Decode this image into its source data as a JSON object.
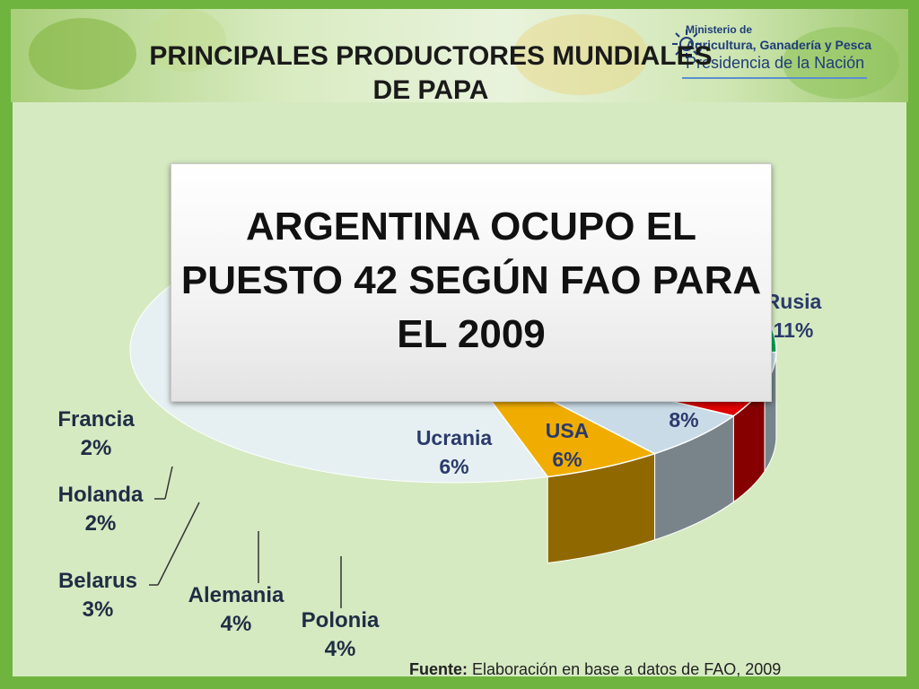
{
  "title": "PRINCIPALES PRODUCTORES MUNDIALES DE PAPA",
  "logo": {
    "line1": "Ministerio de",
    "line2": "Agricultura, Ganadería y Pesca",
    "line3": "Presidencia de la Nación"
  },
  "callout": "ARGENTINA OCUPO EL PUESTO  42  SEGÚN FAO PARA  EL 2009",
  "source": {
    "label": "Fuente:",
    "text": "Elaboración en base a datos de FAO, 2009"
  },
  "colors": {
    "background_green": "#6fb43f",
    "panel": "#d6eac2",
    "usa": "#f0ad00",
    "polonia": "#e00000",
    "alemania": "#c5dde8",
    "belarus": "#00a651",
    "rusia": "#1f1f8c"
  },
  "chart_data": {
    "type": "pie",
    "title": "PRINCIPALES PRODUCTORES MUNDIALES DE PAPA",
    "three_d": true,
    "unit": "%",
    "slices": [
      {
        "name": "USA",
        "value": 6,
        "label": "6%",
        "color": "#f0ad00"
      },
      {
        "name": "Ucrania",
        "value": 6,
        "label": "6%",
        "color": "#c9dbe6"
      },
      {
        "name": "Polonia",
        "value": 4,
        "label": "4%",
        "color": "#e00000"
      },
      {
        "name": "Alemania",
        "value": 4,
        "label": "4%",
        "color": "#c5dde8"
      },
      {
        "name": "Belarus",
        "value": 3,
        "label": "3%",
        "color": "#00a651"
      },
      {
        "name": "Holanda",
        "value": 2,
        "label": "2%",
        "color": "#f4f4f4"
      },
      {
        "name": "Francia",
        "value": 2,
        "label": "2%",
        "color": "#8c8c8c"
      },
      {
        "name": "",
        "value": 8,
        "label": "8%",
        "color": "#ffffff"
      },
      {
        "name": "Rusia",
        "value": 11,
        "label": "11%",
        "color": "#1f1f8c"
      }
    ]
  }
}
